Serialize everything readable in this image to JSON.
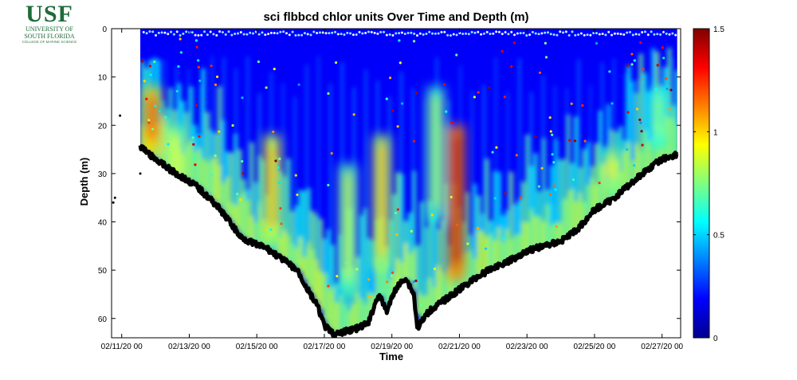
{
  "logo": {
    "mark": "USF",
    "line1": "UNIVERSITY OF",
    "line2": "SOUTH FLORIDA",
    "line3": "COLLEGE OF MARINE SCIENCE"
  },
  "chart_data": {
    "type": "heatmap",
    "title": "sci flbbcd chlor units Over Time and Depth (m)",
    "xlabel": "Time",
    "ylabel": "Depth (m)",
    "x_ticks": [
      "02/11/20 00",
      "02/13/20 00",
      "02/15/20 00",
      "02/17/20 00",
      "02/19/20 00",
      "02/21/20 00",
      "02/23/20 00",
      "02/25/20 00",
      "02/27/20 00"
    ],
    "x_tick_days": [
      0,
      2,
      4,
      6,
      8,
      10,
      12,
      14,
      16
    ],
    "xlim_days": [
      -0.3,
      16.55
    ],
    "y_ticks": [
      0,
      10,
      20,
      30,
      40,
      50,
      60
    ],
    "ylim": [
      0,
      64
    ],
    "y_reversed": true,
    "colorbar": {
      "min": 0,
      "max": 1.5,
      "ticks": [
        0,
        0.5,
        1,
        1.5
      ],
      "tick_labels": [
        "0",
        "0.5",
        "1",
        "1.5"
      ],
      "colormap": "jet"
    },
    "grid": false,
    "data_start_day": 0.55,
    "data_end_day": 16.45,
    "bottom_depth": [
      [
        0.55,
        24.5
      ],
      [
        0.9,
        26.5
      ],
      [
        1.5,
        29.5
      ],
      [
        2.2,
        32.5
      ],
      [
        2.8,
        36.5
      ],
      [
        3.2,
        40
      ],
      [
        3.5,
        43
      ],
      [
        3.9,
        44.5
      ],
      [
        4.3,
        45.5
      ],
      [
        4.7,
        47.5
      ],
      [
        5.2,
        50
      ],
      [
        5.5,
        54
      ],
      [
        5.8,
        57.5
      ],
      [
        6.0,
        61.5
      ],
      [
        6.3,
        63.5
      ],
      [
        6.7,
        62.5
      ],
      [
        7.0,
        62
      ],
      [
        7.3,
        61
      ],
      [
        7.6,
        55
      ],
      [
        7.85,
        58.5
      ],
      [
        8.1,
        54
      ],
      [
        8.4,
        51.5
      ],
      [
        8.65,
        55
      ],
      [
        8.75,
        62
      ],
      [
        8.85,
        61
      ],
      [
        9.1,
        58.5
      ],
      [
        9.5,
        56.5
      ],
      [
        10.0,
        54
      ],
      [
        10.5,
        51.5
      ],
      [
        11.0,
        49.5
      ],
      [
        11.5,
        48
      ],
      [
        12.0,
        46
      ],
      [
        12.5,
        45
      ],
      [
        13.0,
        44
      ],
      [
        13.5,
        41.5
      ],
      [
        14.0,
        37.5
      ],
      [
        14.5,
        35.5
      ],
      [
        15.0,
        32.5
      ],
      [
        15.5,
        29.5
      ],
      [
        16.0,
        27
      ],
      [
        16.45,
        26
      ]
    ],
    "high_chlorophyll_patches": [
      {
        "center_day": 0.9,
        "top_depth": 12,
        "bottom_depth": 26,
        "value": 1.25
      },
      {
        "center_day": 1.6,
        "top_depth": 20,
        "bottom_depth": 36,
        "value": 0.9
      },
      {
        "center_day": 4.45,
        "top_depth": 22,
        "bottom_depth": 44,
        "value": 1.05
      },
      {
        "center_day": 6.7,
        "top_depth": 28,
        "bottom_depth": 55,
        "value": 0.85
      },
      {
        "center_day": 7.7,
        "top_depth": 22,
        "bottom_depth": 50,
        "value": 1.0
      },
      {
        "center_day": 9.3,
        "top_depth": 12,
        "bottom_depth": 40,
        "value": 0.8
      },
      {
        "center_day": 9.9,
        "top_depth": 20,
        "bottom_depth": 52,
        "value": 1.4
      },
      {
        "center_day": 14.5,
        "top_depth": 25,
        "bottom_depth": 34,
        "value": 0.95
      },
      {
        "center_day": 15.9,
        "top_depth": 12,
        "bottom_depth": 25,
        "value": 0.75
      }
    ]
  }
}
